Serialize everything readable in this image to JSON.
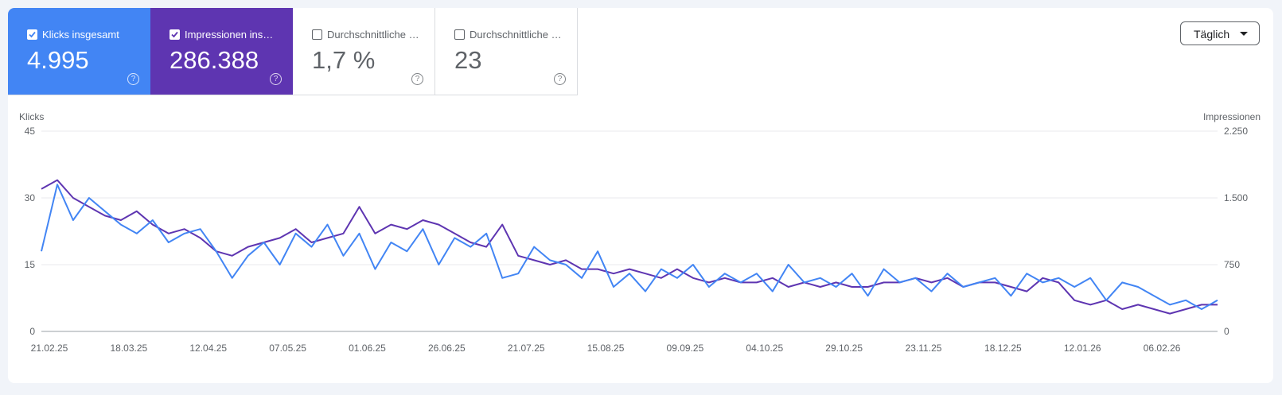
{
  "metrics": [
    {
      "label": "Klicks insgesamt",
      "value": "4.995",
      "checked": true,
      "color": "#4285f4"
    },
    {
      "label": "Impressionen ins…",
      "value": "286.388",
      "checked": true,
      "color": "#5e35b1"
    },
    {
      "label": "Durchschnittliche …",
      "value": "1,7 %",
      "checked": false,
      "color": "#00897b"
    },
    {
      "label": "Durchschnittliche …",
      "value": "23",
      "checked": false,
      "color": "#e8710a"
    }
  ],
  "granularity": "Täglich",
  "chart_data": {
    "type": "line",
    "categories": [
      "21.02.25",
      null,
      null,
      null,
      null,
      "18.03.25",
      null,
      null,
      null,
      null,
      "12.04.25",
      null,
      null,
      null,
      null,
      "07.05.25",
      null,
      null,
      null,
      null,
      "01.06.25",
      null,
      null,
      null,
      null,
      "26.06.25",
      null,
      null,
      null,
      null,
      "21.07.25",
      null,
      null,
      null,
      null,
      "15.08.25",
      null,
      null,
      null,
      null,
      "09.09.25",
      null,
      null,
      null,
      null,
      "04.10.25",
      null,
      null,
      null,
      null,
      "29.10.25",
      null,
      null,
      null,
      null,
      "23.11.25",
      null,
      null,
      null,
      null,
      "18.12.25",
      null,
      null,
      null,
      null,
      "12.01.26",
      null,
      null,
      null,
      null,
      "06.02.26",
      null,
      null,
      null,
      null
    ],
    "series": [
      {
        "name": "Klicks",
        "color": "#4285f4",
        "values": [
          18,
          33,
          25,
          30,
          27,
          24,
          22,
          25,
          20,
          22,
          23,
          18,
          12,
          17,
          20,
          15,
          22,
          19,
          24,
          17,
          22,
          14,
          20,
          18,
          23,
          15,
          21,
          19,
          22,
          12,
          13,
          19,
          16,
          15,
          12,
          18,
          10,
          13,
          9,
          14,
          12,
          15,
          10,
          13,
          11,
          13,
          9,
          15,
          11,
          12,
          10,
          13,
          8,
          14,
          11,
          12,
          9,
          13,
          10,
          11,
          12,
          8,
          13,
          11,
          12,
          10,
          12,
          7,
          11,
          10,
          8,
          6,
          7,
          5,
          7
        ]
      },
      {
        "name": "Impressionen",
        "color": "#5e35b1",
        "axis": "y2",
        "values": [
          1600,
          1700,
          1500,
          1400,
          1300,
          1250,
          1350,
          1200,
          1100,
          1150,
          1050,
          900,
          850,
          950,
          1000,
          1050,
          1150,
          1000,
          1050,
          1100,
          1400,
          1100,
          1200,
          1150,
          1250,
          1200,
          1100,
          1000,
          950,
          1200,
          850,
          800,
          750,
          800,
          700,
          700,
          650,
          700,
          650,
          600,
          700,
          600,
          550,
          600,
          550,
          550,
          600,
          500,
          550,
          500,
          550,
          500,
          500,
          550,
          550,
          600,
          550,
          600,
          500,
          550,
          550,
          500,
          450,
          600,
          550,
          350,
          300,
          350,
          250,
          300,
          250,
          200,
          250,
          300,
          300
        ]
      }
    ],
    "ylim": [
      0,
      45
    ],
    "yticks": [
      0,
      15,
      30,
      45
    ],
    "y2lim": [
      0,
      2250
    ],
    "y2ticks": [
      0,
      750,
      {
        "value": 1500,
        "label": "1.500"
      },
      {
        "value": 2250,
        "label": "2.250"
      }
    ],
    "grid": true
  }
}
